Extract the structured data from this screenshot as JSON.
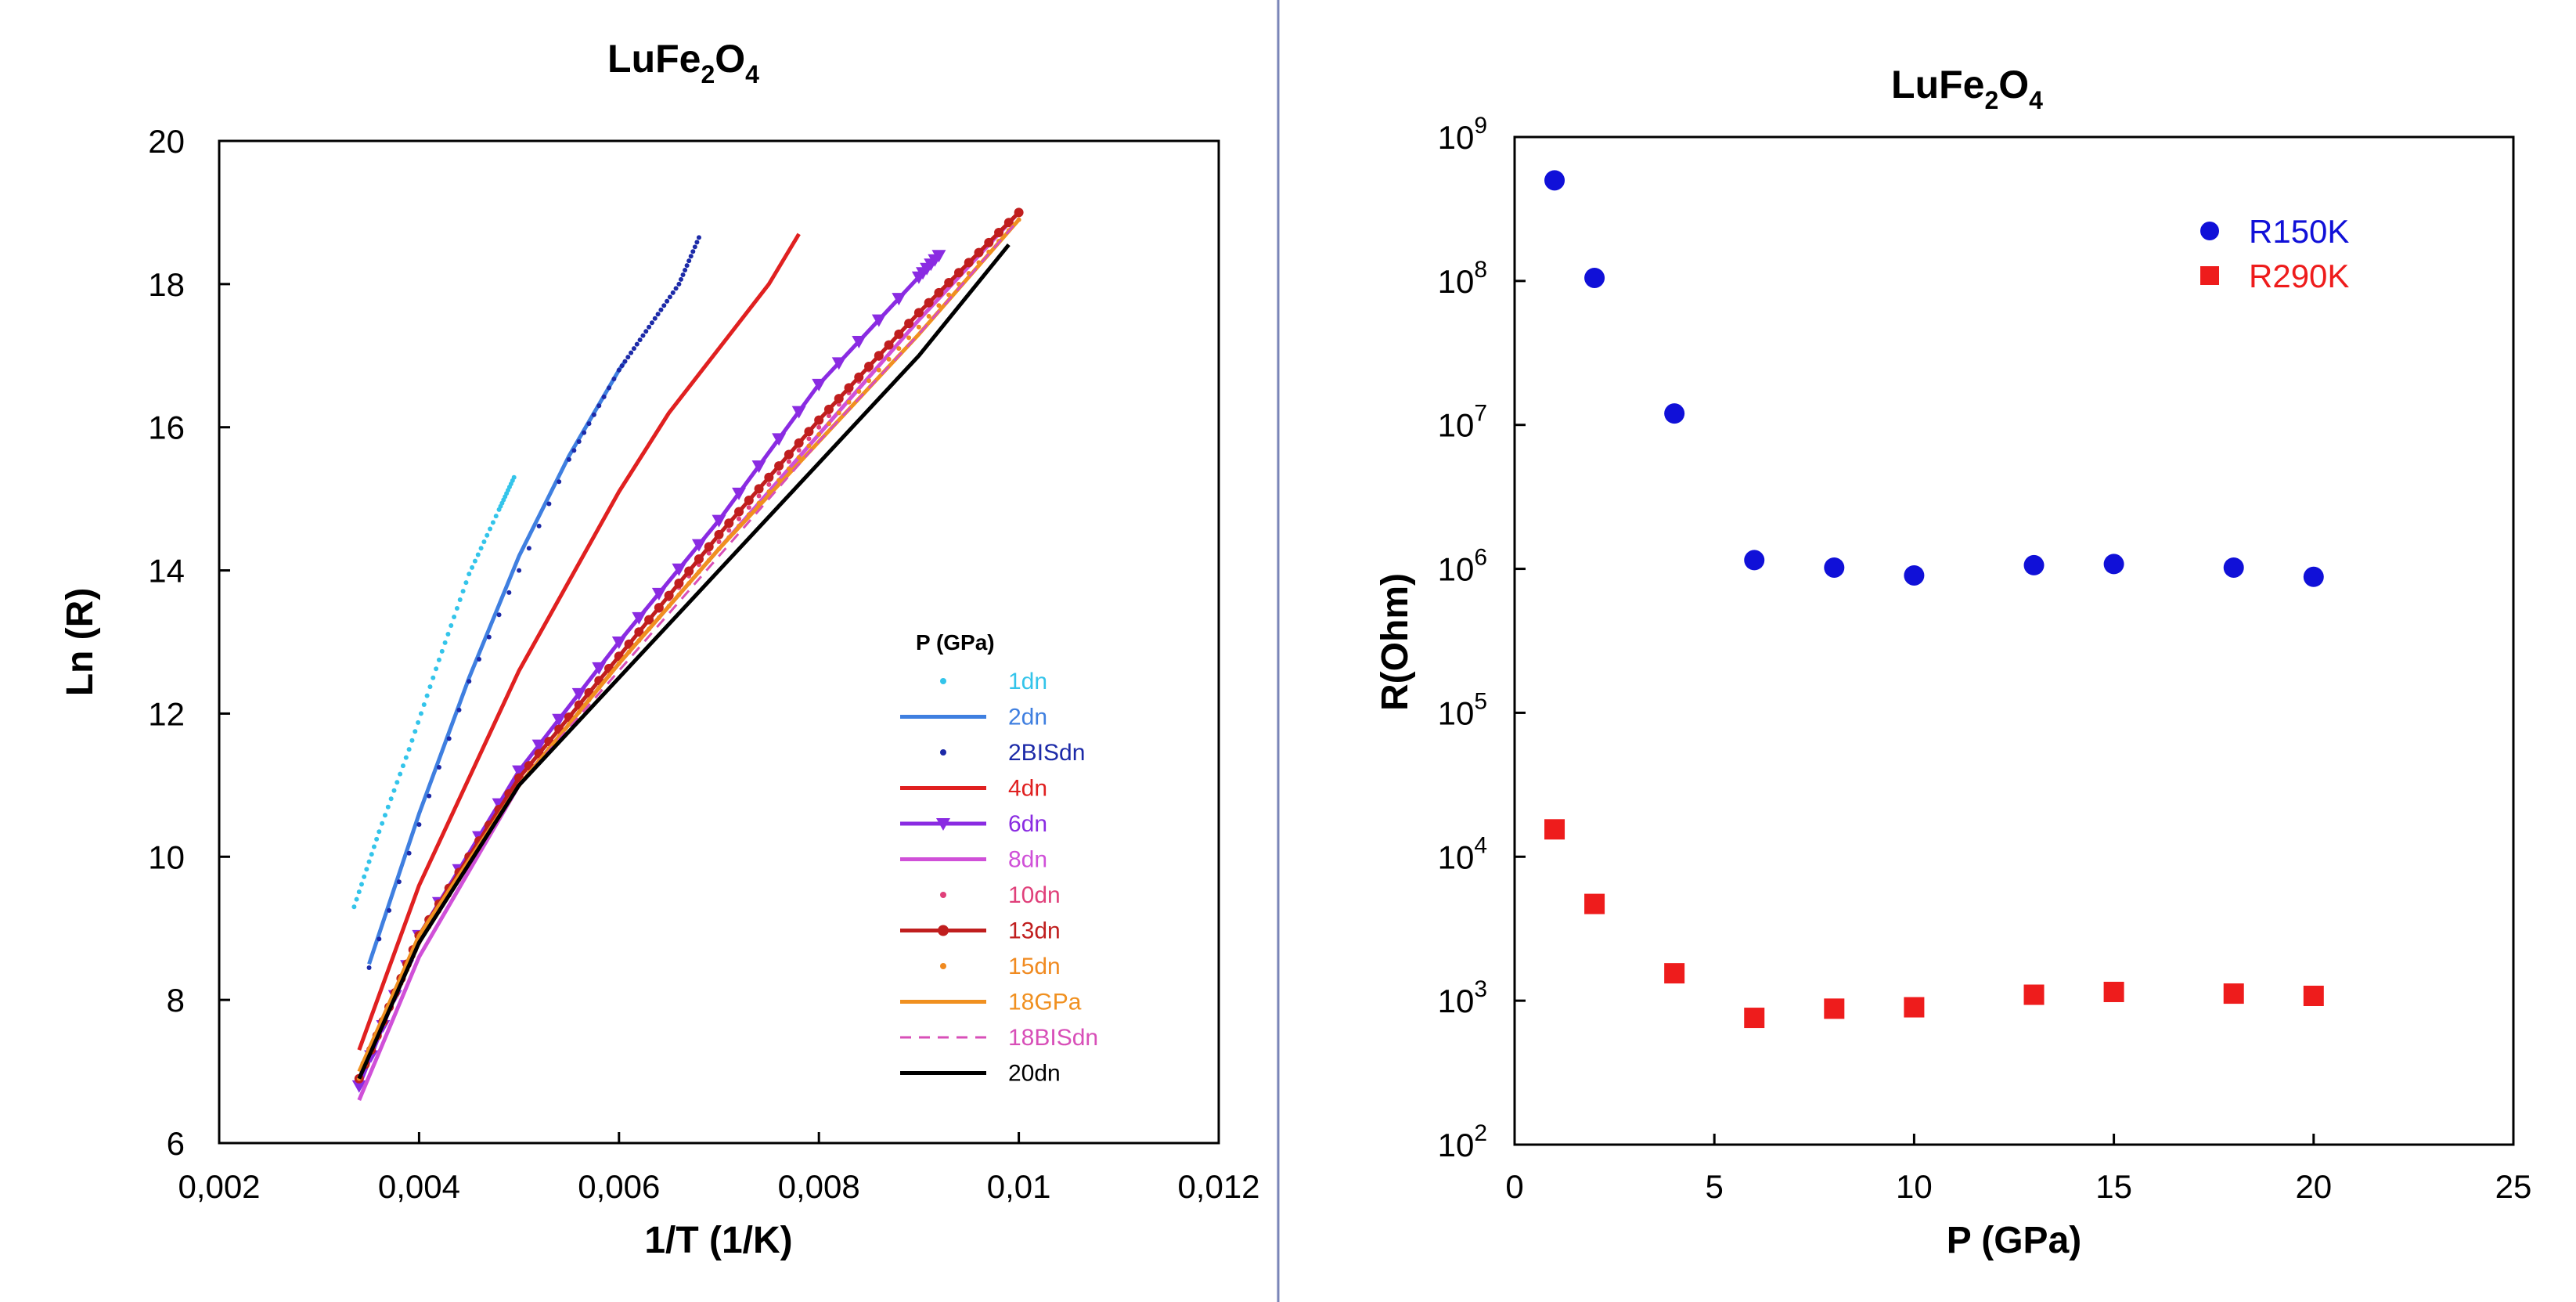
{
  "figure_divider_color": "#7b86b8",
  "chart_data": [
    {
      "type": "line",
      "title": "LuFe",
      "title_sub1": "2",
      "title_mid": "O",
      "title_sub2": "4",
      "xlabel": "1/T (1/K)",
      "ylabel": "Ln (R)",
      "xlim": [
        0.002,
        0.012
      ],
      "ylim": [
        6,
        20
      ],
      "xticks": [
        0.002,
        0.004,
        0.006,
        0.008,
        0.01,
        0.012
      ],
      "xtick_labels": [
        "0,002",
        "0,004",
        "0,006",
        "0,008",
        "0,01",
        "0,012"
      ],
      "yticks": [
        6,
        8,
        10,
        12,
        14,
        16,
        18,
        20
      ],
      "ytick_labels": [
        "6",
        "8",
        "10",
        "12",
        "14",
        "16",
        "18",
        "20"
      ],
      "legend_title": "P (GPa)",
      "legend_position": "lower-right",
      "series": [
        {
          "name": "1dn",
          "color": "#33c4ea",
          "style": "dots",
          "x": [
            0.00335,
            0.0036,
            0.0039,
            0.0042,
            0.0045,
            0.0048,
            0.00495
          ],
          "y": [
            9.3,
            10.35,
            11.5,
            12.75,
            13.95,
            14.85,
            15.3
          ]
        },
        {
          "name": "2dn",
          "color": "#3f7fe0",
          "style": "line",
          "x": [
            0.0035,
            0.004,
            0.0045,
            0.005,
            0.0055,
            0.006,
            0.00605
          ],
          "y": [
            8.5,
            10.6,
            12.5,
            14.2,
            15.6,
            16.8,
            16.9
          ]
        },
        {
          "name": "2BISdn",
          "color": "#1c2aa8",
          "style": "dots",
          "x": [
            0.0035,
            0.0045,
            0.0055,
            0.006,
            0.0063,
            0.0066,
            0.0068
          ],
          "y": [
            8.45,
            12.45,
            15.55,
            16.8,
            17.4,
            18.0,
            18.65
          ]
        },
        {
          "name": "4dn",
          "color": "#e02020",
          "style": "line",
          "x": [
            0.0034,
            0.004,
            0.005,
            0.006,
            0.0065,
            0.007,
            0.0075,
            0.0078
          ],
          "y": [
            7.3,
            9.6,
            12.6,
            15.1,
            16.2,
            17.1,
            18.0,
            18.7
          ]
        },
        {
          "name": "6dn",
          "color": "#8a2be2",
          "style": "line-triangles",
          "x": [
            0.0034,
            0.004,
            0.005,
            0.006,
            0.007,
            0.008,
            0.009,
            0.0092
          ],
          "y": [
            6.8,
            8.9,
            11.2,
            13.0,
            14.7,
            16.6,
            18.1,
            18.4
          ]
        },
        {
          "name": "8dn",
          "color": "#d050d8",
          "style": "line",
          "x": [
            0.0034,
            0.004,
            0.005,
            0.006,
            0.007,
            0.008,
            0.009,
            0.01
          ],
          "y": [
            6.6,
            8.6,
            11.0,
            12.7,
            14.3,
            15.9,
            17.5,
            19.0
          ]
        },
        {
          "name": "10dn",
          "color": "#e0407a",
          "style": "dots",
          "x": [
            0.0034,
            0.004,
            0.005,
            0.006,
            0.007,
            0.008,
            0.009,
            0.01
          ],
          "y": [
            6.9,
            8.8,
            11.1,
            12.8,
            14.4,
            16.0,
            17.6,
            19.0
          ]
        },
        {
          "name": "13dn",
          "color": "#c01e1e",
          "style": "line-dots",
          "x": [
            0.0034,
            0.004,
            0.005,
            0.006,
            0.007,
            0.008,
            0.009,
            0.01
          ],
          "y": [
            6.9,
            8.9,
            11.1,
            12.8,
            14.5,
            16.1,
            17.6,
            19.0
          ]
        },
        {
          "name": "15dn",
          "color": "#f08a20",
          "style": "dots",
          "x": [
            0.0034,
            0.004,
            0.005,
            0.006,
            0.007,
            0.008,
            0.009,
            0.01
          ],
          "y": [
            6.9,
            8.8,
            11.0,
            12.7,
            14.3,
            15.9,
            17.4,
            18.9
          ]
        },
        {
          "name": "18GPa",
          "color": "#f09020",
          "style": "line",
          "x": [
            0.0034,
            0.004,
            0.005,
            0.006,
            0.007,
            0.008,
            0.009,
            0.01
          ],
          "y": [
            7.0,
            8.9,
            11.0,
            12.7,
            14.3,
            15.8,
            17.3,
            18.9
          ]
        },
        {
          "name": "18BISdn",
          "color": "#d84fb8",
          "style": "dashed",
          "x": [
            0.0034,
            0.004,
            0.005,
            0.006,
            0.007,
            0.008,
            0.009,
            0.01
          ],
          "y": [
            6.9,
            8.8,
            11.0,
            12.6,
            14.2,
            15.8,
            17.3,
            18.9
          ]
        },
        {
          "name": "20dn",
          "color": "#000000",
          "style": "line",
          "x": [
            0.0034,
            0.004,
            0.005,
            0.006,
            0.007,
            0.008,
            0.009,
            0.0099
          ],
          "y": [
            6.9,
            8.8,
            11.0,
            12.5,
            14.0,
            15.5,
            17.0,
            18.55
          ]
        }
      ]
    },
    {
      "type": "scatter",
      "title": "LuFe",
      "title_sub1": "2",
      "title_mid": "O",
      "title_sub2": "4",
      "xlabel": "P (GPa)",
      "ylabel": "R(Ohm)",
      "xlim": [
        0,
        25
      ],
      "yscale": "log",
      "ylim": [
        100,
        1000000000
      ],
      "xticks": [
        0,
        5,
        10,
        15,
        20,
        25
      ],
      "xtick_labels": [
        "0",
        "5",
        "10",
        "15",
        "20",
        "25"
      ],
      "ytick_exponents": [
        2,
        3,
        4,
        5,
        6,
        7,
        8,
        9
      ],
      "ytick_base": "10",
      "ytick_exp_labels": [
        "2",
        "3",
        "4",
        "5",
        "6",
        "7",
        "8",
        "9"
      ],
      "legend_position": "top-right",
      "series": [
        {
          "name": "R150K",
          "color": "#1010d8",
          "marker": "circle",
          "x": [
            1,
            2,
            4,
            6,
            8,
            10,
            13,
            15,
            18,
            20
          ],
          "y": [
            500000000,
            105000000,
            12000000,
            1150000,
            1020000,
            900000,
            1060000,
            1080000,
            1020000,
            880000
          ]
        },
        {
          "name": "R290K",
          "color": "#ee1c1c",
          "marker": "square",
          "x": [
            1,
            2,
            4,
            6,
            8,
            10,
            13,
            15,
            18,
            20
          ],
          "y": [
            15500,
            4700,
            1550,
            760,
            880,
            900,
            1100,
            1150,
            1120,
            1080
          ]
        }
      ]
    }
  ]
}
